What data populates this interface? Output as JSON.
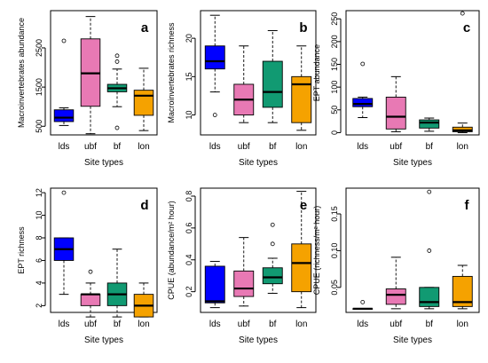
{
  "chart_data": [
    {
      "type": "boxplot",
      "panel_letter": "a",
      "ylabel": "Macroinvertebrates abundance",
      "xlabel": "Site types",
      "categories": [
        "lds",
        "ubf",
        "bf",
        "lon"
      ],
      "ylim": [
        280,
        3450
      ],
      "yticks": [
        500,
        1500,
        2500
      ],
      "boxes": [
        {
          "lower_whisker": 520,
          "q1": 620,
          "median": 720,
          "q3": 920,
          "upper_whisker": 970,
          "outliers": [
            2680
          ]
        },
        {
          "lower_whisker": 310,
          "q1": 1010,
          "median": 1850,
          "q3": 2730,
          "upper_whisker": 3300,
          "outliers": []
        },
        {
          "lower_whisker": 1000,
          "q1": 1380,
          "median": 1470,
          "q3": 1570,
          "upper_whisker": 1960,
          "outliers": [
            2300,
            2150,
            460
          ]
        },
        {
          "lower_whisker": 390,
          "q1": 780,
          "median": 1280,
          "q3": 1420,
          "upper_whisker": 1980,
          "outliers": []
        }
      ]
    },
    {
      "type": "boxplot",
      "panel_letter": "b",
      "ylabel": "Macroinvertebrates richness",
      "xlabel": "Site types",
      "categories": [
        "lds",
        "ubf",
        "bf",
        "lon"
      ],
      "ylim": [
        7.4,
        23.6
      ],
      "yticks": [
        10,
        15,
        20
      ],
      "boxes": [
        {
          "lower_whisker": 13,
          "q1": 16,
          "median": 17,
          "q3": 19,
          "upper_whisker": 23,
          "outliers": [
            10
          ]
        },
        {
          "lower_whisker": 9,
          "q1": 10,
          "median": 12,
          "q3": 14,
          "upper_whisker": 19,
          "outliers": []
        },
        {
          "lower_whisker": 9,
          "q1": 11,
          "median": 13,
          "q3": 17,
          "upper_whisker": 21,
          "outliers": []
        },
        {
          "lower_whisker": 8,
          "q1": 9,
          "median": 14,
          "q3": 15,
          "upper_whisker": 19,
          "outliers": []
        }
      ]
    },
    {
      "type": "boxplot",
      "panel_letter": "c",
      "ylabel": "EPT abundance",
      "xlabel": "Site types",
      "categories": [
        "lds",
        "ubf",
        "bf",
        "lon"
      ],
      "ylim": [
        -5,
        268
      ],
      "yticks": [
        0,
        50,
        100,
        150,
        200,
        250
      ],
      "boxes": [
        {
          "lower_whisker": 33,
          "q1": 57,
          "median": 63,
          "q3": 75,
          "upper_whisker": 78,
          "outliers": [
            151
          ]
        },
        {
          "lower_whisker": 2,
          "q1": 8,
          "median": 35,
          "q3": 78,
          "upper_whisker": 123,
          "outliers": []
        },
        {
          "lower_whisker": 3,
          "q1": 10,
          "median": 22,
          "q3": 28,
          "upper_whisker": 32,
          "outliers": []
        },
        {
          "lower_whisker": 0,
          "q1": 2,
          "median": 5,
          "q3": 12,
          "upper_whisker": 21,
          "outliers": [
            262
          ]
        }
      ]
    },
    {
      "type": "boxplot",
      "panel_letter": "d",
      "ylabel": "EPT richness",
      "xlabel": "Site types",
      "categories": [
        "lds",
        "ubf",
        "bf",
        "lon"
      ],
      "ylim": [
        1.4,
        12.4
      ],
      "yticks": [
        2,
        4,
        6,
        8,
        10,
        12
      ],
      "boxes": [
        {
          "lower_whisker": 3,
          "q1": 6,
          "median": 7,
          "q3": 8,
          "upper_whisker": 8,
          "outliers": [
            12
          ]
        },
        {
          "lower_whisker": 1,
          "q1": 2,
          "median": 3,
          "q3": 3,
          "upper_whisker": 4,
          "outliers": [
            5
          ]
        },
        {
          "lower_whisker": 1,
          "q1": 2,
          "median": 3,
          "q3": 4,
          "upper_whisker": 7,
          "outliers": []
        },
        {
          "lower_whisker": 1,
          "q1": 1,
          "median": 2,
          "q3": 3,
          "upper_whisker": 4,
          "outliers": []
        }
      ]
    },
    {
      "type": "boxplot",
      "panel_letter": "e",
      "ylabel": "CPUE (abundance/m² hour)",
      "xlabel": "Site types",
      "categories": [
        "lds",
        "ubf",
        "bf",
        "lon"
      ],
      "ylim": [
        0.07,
        0.85
      ],
      "yticks": [
        0.2,
        0.4,
        0.6,
        0.8
      ],
      "boxes": [
        {
          "lower_whisker": 0.1,
          "q1": 0.13,
          "median": 0.14,
          "q3": 0.36,
          "upper_whisker": 0.39,
          "outliers": []
        },
        {
          "lower_whisker": 0.11,
          "q1": 0.17,
          "median": 0.22,
          "q3": 0.33,
          "upper_whisker": 0.54,
          "outliers": []
        },
        {
          "lower_whisker": 0.19,
          "q1": 0.25,
          "median": 0.29,
          "q3": 0.35,
          "upper_whisker": 0.41,
          "outliers": [
            0.62,
            0.5
          ]
        },
        {
          "lower_whisker": 0.1,
          "q1": 0.2,
          "median": 0.38,
          "q3": 0.5,
          "upper_whisker": 0.83,
          "outliers": []
        }
      ]
    },
    {
      "type": "boxplot",
      "panel_letter": "f",
      "ylabel": "CPUE (richness/m² hour)",
      "xlabel": "Site types",
      "categories": [
        "lds",
        "ubf",
        "bf",
        "lon"
      ],
      "ylim": [
        0.016,
        0.185
      ],
      "yticks": [
        0.05,
        0.1,
        0.15
      ],
      "yticklabels": [
        "0.05",
        "0.10",
        "0.15"
      ],
      "boxes": [
        {
          "lower_whisker": 0.021,
          "q1": 0.021,
          "median": 0.021,
          "q3": 0.021,
          "upper_whisker": 0.021,
          "outliers": [
            0.03
          ]
        },
        {
          "lower_whisker": 0.021,
          "q1": 0.027,
          "median": 0.04,
          "q3": 0.048,
          "upper_whisker": 0.091,
          "outliers": []
        },
        {
          "lower_whisker": 0.021,
          "q1": 0.024,
          "median": 0.03,
          "q3": 0.05,
          "upper_whisker": 0.05,
          "outliers": [
            0.18,
            0.1
          ]
        },
        {
          "lower_whisker": 0.021,
          "q1": 0.024,
          "median": 0.03,
          "q3": 0.065,
          "upper_whisker": 0.08,
          "outliers": []
        }
      ]
    }
  ],
  "colors": {
    "lds": "#0000ff",
    "ubf": "#e879b4",
    "bf": "#119a72",
    "lon": "#f5a200"
  }
}
